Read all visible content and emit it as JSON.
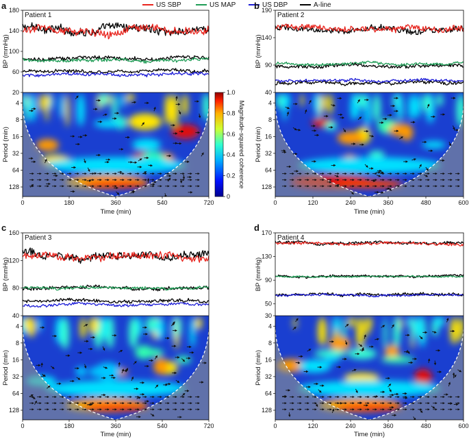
{
  "legend": {
    "entries": [
      {
        "label": "US SBP",
        "color": "#e8231c"
      },
      {
        "label": "US MAP",
        "color": "#1e9c55"
      },
      {
        "label": "US DBP",
        "color": "#1b1bd6"
      },
      {
        "label": "A-line",
        "color": "#000000"
      }
    ]
  },
  "colorbar": {
    "label": "Magnitude-squared coherence",
    "ticks": [
      "0",
      "0.2",
      "0.4",
      "0.6",
      "0.8",
      "1.0"
    ]
  },
  "chart_data": [
    {
      "panel": "a",
      "patient": "Patient 1",
      "type": "line",
      "ylabel": "BP (mmHg)",
      "bp_ticks": [
        "180",
        "140",
        "100",
        "60",
        "20"
      ],
      "bp_range": [
        20,
        180
      ],
      "series": [
        {
          "name": "US SBP",
          "mean": 140,
          "amp": 12
        },
        {
          "name": "A-line systolic",
          "mean": 143,
          "amp": 13
        },
        {
          "name": "US MAP",
          "mean": 83,
          "amp": 5
        },
        {
          "name": "A-line mean",
          "mean": 86,
          "amp": 6
        },
        {
          "name": "US DBP",
          "mean": 55,
          "amp": 5
        },
        {
          "name": "A-line diastolic",
          "mean": 62,
          "amp": 5
        }
      ],
      "xlabel": "Time (min)",
      "x_ticks": [
        "0",
        "180",
        "360",
        "540",
        "720"
      ],
      "xlim": [
        0,
        720
      ],
      "period_label": "Period (min)",
      "period_ticks": [
        "4",
        "8",
        "16",
        "32",
        "64",
        "128"
      ],
      "coherence_type": "heatmap"
    },
    {
      "panel": "b",
      "patient": "Patient 2",
      "type": "line",
      "ylabel": "BP (mmHg)",
      "bp_ticks": [
        "190",
        "140",
        "90",
        "40"
      ],
      "bp_range": [
        40,
        190
      ],
      "series": [
        {
          "name": "US SBP",
          "mean": 158,
          "amp": 9
        },
        {
          "name": "A-line systolic",
          "mean": 155,
          "amp": 9
        },
        {
          "name": "US MAP",
          "mean": 92,
          "amp": 4
        },
        {
          "name": "A-line mean",
          "mean": 88,
          "amp": 5
        },
        {
          "name": "US DBP",
          "mean": 62,
          "amp": 4
        },
        {
          "name": "A-line diastolic",
          "mean": 58,
          "amp": 5
        }
      ],
      "xlabel": "Time (min)",
      "x_ticks": [
        "0",
        "120",
        "240",
        "360",
        "480",
        "600"
      ],
      "xlim": [
        0,
        600
      ],
      "period_label": "Period (min)",
      "period_ticks": [
        "4",
        "8",
        "16",
        "32",
        "64",
        "128"
      ],
      "coherence_type": "heatmap"
    },
    {
      "panel": "c",
      "patient": "Patient 3",
      "type": "line",
      "ylabel": "BP (mmHg)",
      "bp_ticks": [
        "160",
        "120",
        "80",
        "40"
      ],
      "bp_range": [
        40,
        160
      ],
      "series": [
        {
          "name": "US SBP",
          "mean": 125,
          "amp": 8
        },
        {
          "name": "A-line systolic",
          "mean": 128,
          "amp": 9
        },
        {
          "name": "US MAP",
          "mean": 80,
          "amp": 3
        },
        {
          "name": "A-line mean",
          "mean": 80,
          "amp": 4
        },
        {
          "name": "US DBP",
          "mean": 56,
          "amp": 3
        },
        {
          "name": "A-line diastolic",
          "mean": 62,
          "amp": 4
        }
      ],
      "xlabel": "Time (min)",
      "x_ticks": [
        "0",
        "180",
        "360",
        "540",
        "720"
      ],
      "xlim": [
        0,
        720
      ],
      "period_label": "Period (min)",
      "period_ticks": [
        "4",
        "8",
        "16",
        "32",
        "64",
        "128"
      ],
      "coherence_type": "heatmap"
    },
    {
      "panel": "d",
      "patient": "Patient 4",
      "type": "line",
      "ylabel": "BP (mmHg)",
      "bp_ticks": [
        "170",
        "130",
        "90",
        "50",
        "30"
      ],
      "bp_range": [
        30,
        170
      ],
      "series": [
        {
          "name": "US SBP",
          "mean": 152,
          "amp": 4
        },
        {
          "name": "A-line systolic",
          "mean": 153,
          "amp": 4
        },
        {
          "name": "US MAP",
          "mean": 96,
          "amp": 2
        },
        {
          "name": "A-line mean",
          "mean": 97,
          "amp": 3
        },
        {
          "name": "US DBP",
          "mean": 65,
          "amp": 3
        },
        {
          "name": "A-line diastolic",
          "mean": 66,
          "amp": 4
        }
      ],
      "xlabel": "Time (min)",
      "x_ticks": [
        "0",
        "120",
        "240",
        "360",
        "480",
        "600"
      ],
      "xlim": [
        0,
        600
      ],
      "period_label": "Period (min)",
      "period_ticks": [
        "4",
        "8",
        "16",
        "32",
        "64",
        "128"
      ],
      "coherence_type": "heatmap"
    }
  ]
}
